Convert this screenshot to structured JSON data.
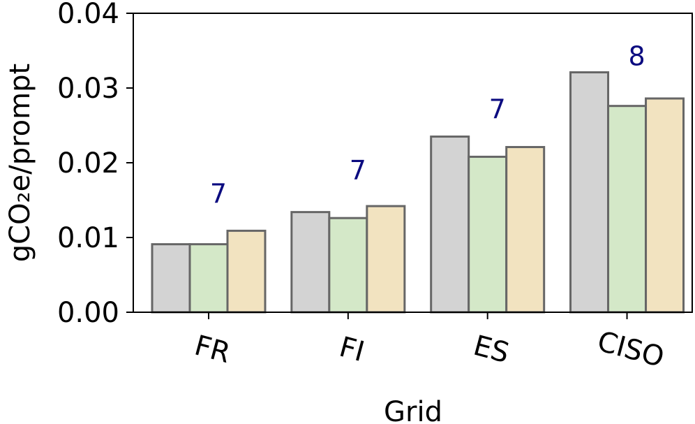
{
  "chart_data": {
    "type": "bar",
    "xlabel": "Grid",
    "ylabel": "gCO₂e/prompt",
    "ylim": [
      0,
      0.04
    ],
    "yticks": [
      "0.00",
      "0.01",
      "0.02",
      "0.03",
      "0.04"
    ],
    "categories": [
      "FR",
      "FI",
      "ES",
      "CISO"
    ],
    "series": [
      {
        "values": [
          0.0091,
          0.0134,
          0.0235,
          0.0321
        ],
        "color": "#d3d3d3"
      },
      {
        "values": [
          0.0091,
          0.0126,
          0.0208,
          0.0276
        ],
        "color": "#d4e8c8"
      },
      {
        "values": [
          0.0109,
          0.0142,
          0.0221,
          0.0286
        ],
        "color": "#f2e3c0"
      }
    ],
    "annotations": [
      "7",
      "7",
      "7",
      "8"
    ],
    "edge_color": "#666666",
    "annotation_color": "#0b0b80",
    "grid": false,
    "legend": "none"
  }
}
